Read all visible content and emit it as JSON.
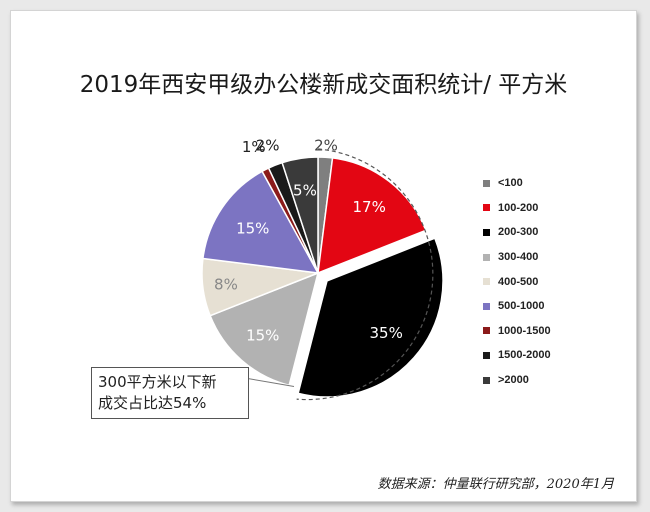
{
  "chart_data": {
    "type": "pie",
    "title": "2019年西安甲级办公楼新成交面积统计/ 平方米",
    "slices": [
      {
        "label": "<100",
        "value": 2,
        "display": "2%",
        "color": "#7f7f7f"
      },
      {
        "label": "100-200",
        "value": 17,
        "display": "17%",
        "color": "#e30613"
      },
      {
        "label": "200-300",
        "value": 35,
        "display": "35%",
        "color": "#000000"
      },
      {
        "label": "300-400",
        "value": 15,
        "display": "15%",
        "color": "#b2b2b2"
      },
      {
        "label": "400-500",
        "value": 8,
        "display": "8%",
        "color": "#e6e0d3"
      },
      {
        "label": "500-1000",
        "value": 15,
        "display": "15%",
        "color": "#7c74c2"
      },
      {
        "label": "1000-1500",
        "value": 1,
        "display": "1%",
        "color": "#8b1a1a"
      },
      {
        "label": "1500-2000",
        "value": 2,
        "display": "2%",
        "color": "#1a1a1a"
      },
      {
        "label": ">2000",
        "value": 5,
        "display": "5%",
        "color": "#3a3a3a"
      }
    ],
    "legend_position": "right",
    "callout": {
      "lines": [
        "300平方米以下新",
        "成交占比达54%"
      ]
    },
    "source": "数据来源：仲量联行研究部，2020年1月"
  }
}
